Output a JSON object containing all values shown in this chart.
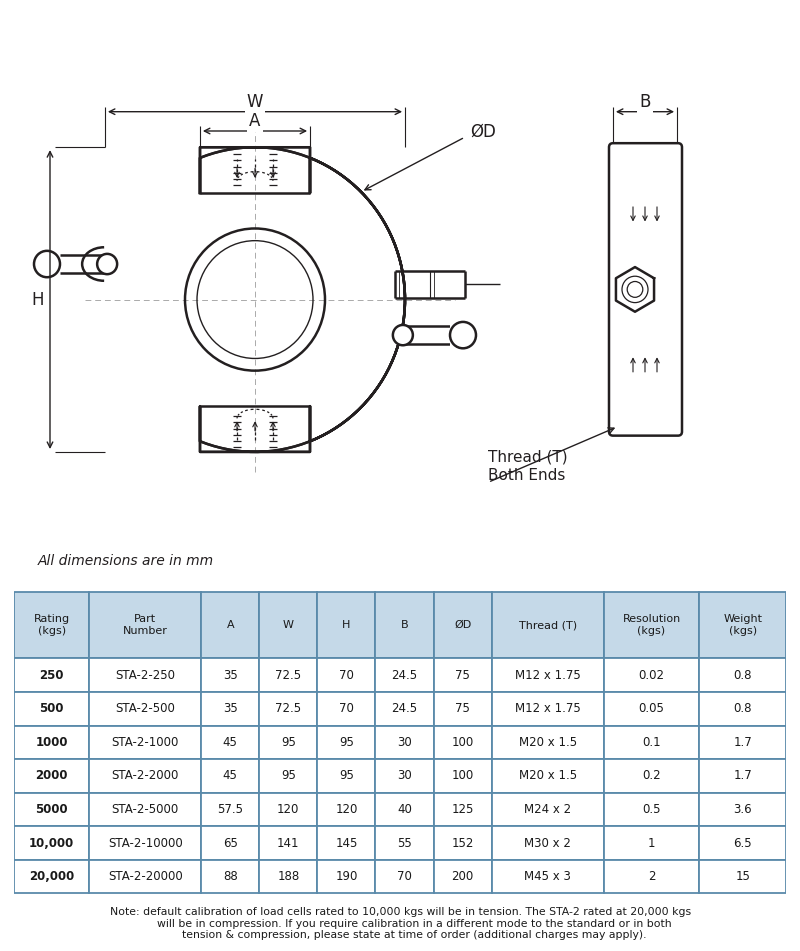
{
  "bg_color": "#ffffff",
  "drawing_color": "#231f20",
  "dim_line_color": "#666666",
  "table_header_bg": "#c5d9e8",
  "table_border_color": "#5a8aaa",
  "table_headers": [
    "Rating\n(kgs)",
    "Part\nNumber",
    "A",
    "W",
    "H",
    "B",
    "ØD",
    "Thread (T)",
    "Resolution\n(kgs)",
    "Weight\n(kgs)"
  ],
  "table_data": [
    [
      "250",
      "STA-2-250",
      "35",
      "72.5",
      "70",
      "24.5",
      "75",
      "M12 x 1.75",
      "0.02",
      "0.8"
    ],
    [
      "500",
      "STA-2-500",
      "35",
      "72.5",
      "70",
      "24.5",
      "75",
      "M12 x 1.75",
      "0.05",
      "0.8"
    ],
    [
      "1000",
      "STA-2-1000",
      "45",
      "95",
      "95",
      "30",
      "100",
      "M20 x 1.5",
      "0.1",
      "1.7"
    ],
    [
      "2000",
      "STA-2-2000",
      "45",
      "95",
      "95",
      "30",
      "100",
      "M20 x 1.5",
      "0.2",
      "1.7"
    ],
    [
      "5000",
      "STA-2-5000",
      "57.5",
      "120",
      "120",
      "40",
      "125",
      "M24 x 2",
      "0.5",
      "3.6"
    ],
    [
      "10,000",
      "STA-2-10000",
      "65",
      "141",
      "145",
      "55",
      "152",
      "M30 x 2",
      "1",
      "6.5"
    ],
    [
      "20,000",
      "STA-2-20000",
      "88",
      "188",
      "190",
      "70",
      "200",
      "M45 x 3",
      "2",
      "15"
    ]
  ],
  "note_text": "Note: default calibration of load cells rated to 10,000 kgs will be in tension. The STA-2 rated at 20,000 kgs\n        will be in compression. If you require calibration in a different mode to the standard or in both\n        tension & compression, please state at time of order (additional charges may apply).",
  "all_dims_text": "All dimensions are in mm"
}
